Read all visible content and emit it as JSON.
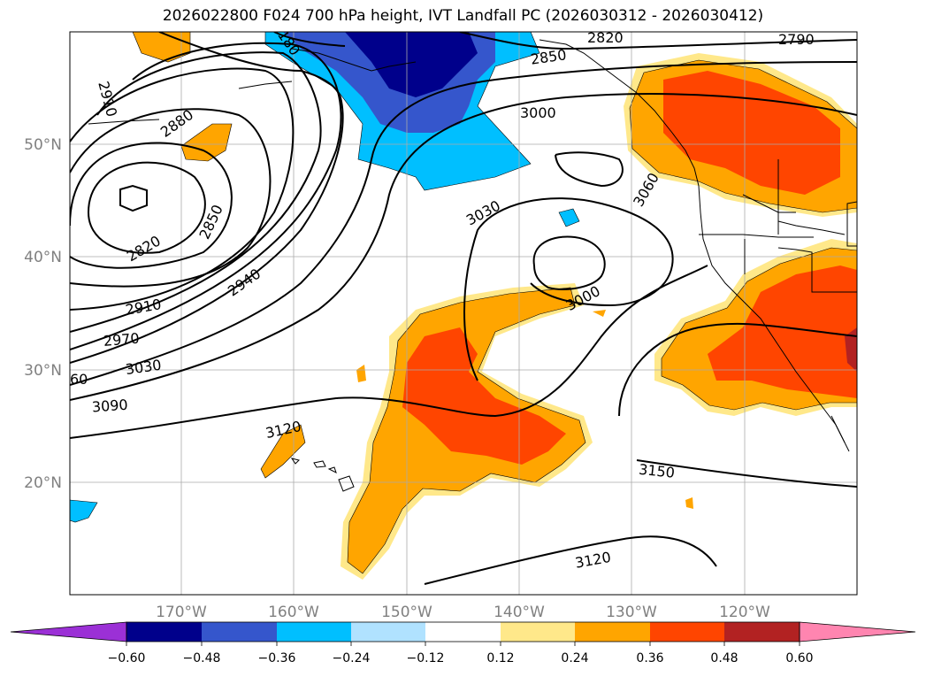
{
  "title": "2026022800 F024 700 hPa height, IVT Landfall PC (2026030312 - 2026030412)",
  "axes": {
    "lon_ticks": [
      "170°W",
      "160°W",
      "150°W",
      "140°W",
      "130°W",
      "120°W"
    ],
    "lat_ticks": [
      "50°N",
      "40°N",
      "30°N",
      "20°N"
    ],
    "lon_range": [
      -180,
      -110
    ],
    "lat_range": [
      10,
      60
    ],
    "grid": true
  },
  "contours": {
    "variable": "700 hPa height",
    "labels": [
      "2910",
      "2880",
      "2820",
      "2850",
      "2940",
      "2910",
      "2970",
      "3030",
      "60",
      "3090",
      "3120",
      "3030",
      "3000",
      "3060",
      "3000",
      "2850",
      "2820",
      "2790",
      "180",
      "3150",
      "3120"
    ]
  },
  "colorbar": {
    "ticks": [
      "−0.60",
      "−0.48",
      "−0.36",
      "−0.24",
      "−0.12",
      "0.12",
      "0.24",
      "0.36",
      "0.48",
      "0.60"
    ],
    "colors": [
      "#9b30d6",
      "#00008b",
      "#3556cc",
      "#00bfff",
      "#b0e2ff",
      "#ffffff",
      "#ffe88a",
      "#ffa500",
      "#ff4500",
      "#b22222",
      "#ff85b0"
    ]
  },
  "colors": {
    "neg_dark": "#00008b",
    "neg_mid": "#3556cc",
    "neg_light": "#00bfff",
    "neg_pale": "#b0e2ff",
    "pos_pale": "#ffe88a",
    "pos_orange": "#ffa500",
    "pos_red": "#ff4500",
    "pos_dark": "#b22222"
  }
}
